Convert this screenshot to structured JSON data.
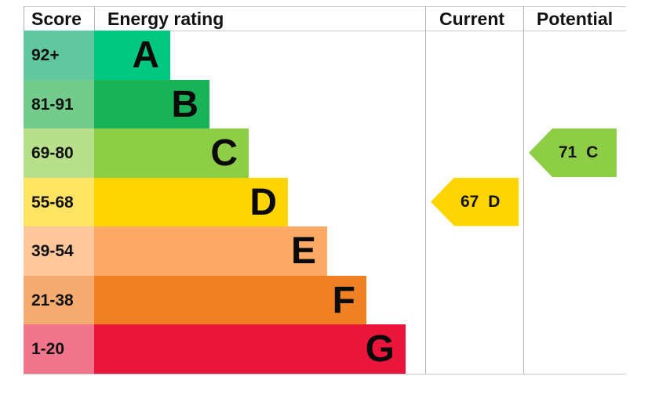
{
  "chart_data": {
    "type": "bar",
    "headers": {
      "score": "Score",
      "rating": "Energy rating",
      "current": "Current",
      "potential": "Potential"
    },
    "bands": [
      {
        "letter": "A",
        "range": "92+",
        "color": "#00c781",
        "score_color": "#61c7a0"
      },
      {
        "letter": "B",
        "range": "81-91",
        "color": "#19b459",
        "score_color": "#73cc8c"
      },
      {
        "letter": "C",
        "range": "69-80",
        "color": "#8dce46",
        "score_color": "#b8e08a"
      },
      {
        "letter": "D",
        "range": "55-68",
        "color": "#ffd500",
        "score_color": "#ffe363"
      },
      {
        "letter": "E",
        "range": "39-54",
        "color": "#fcaa65",
        "score_color": "#fec89c"
      },
      {
        "letter": "F",
        "range": "21-38",
        "color": "#ef8023",
        "score_color": "#f3ab70"
      },
      {
        "letter": "G",
        "range": "1-20",
        "color": "#e9153b",
        "score_color": "#f0748a"
      }
    ],
    "current": {
      "value": 67,
      "band": "D",
      "label": "67 D",
      "color": "#ffd500"
    },
    "potential": {
      "value": 71,
      "band": "C",
      "label": "71 C",
      "color": "#8dce46"
    }
  }
}
